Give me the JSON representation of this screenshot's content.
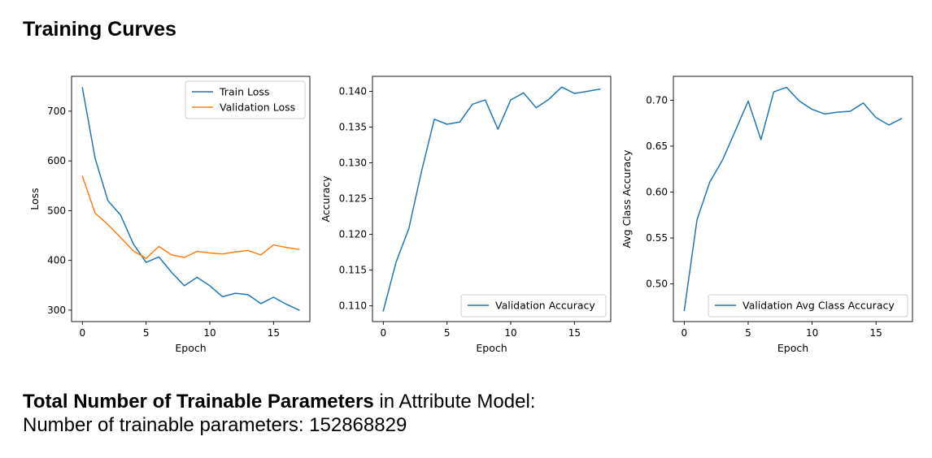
{
  "page": {
    "heading": "Training Curves",
    "params_bold": "Total Number of Trainable Parameters",
    "params_rest": " in Attribute Model:",
    "params_line2": "Number of trainable parameters: 152868829"
  },
  "chart_data": [
    {
      "type": "line",
      "xlabel": "Epoch",
      "ylabel": "Loss",
      "xlim": [
        -0.85,
        17.85
      ],
      "ylim": [
        277,
        770
      ],
      "xticks": [
        0,
        5,
        10,
        15
      ],
      "xtick_labels": [
        "0",
        "5",
        "10",
        "15"
      ],
      "yticks": [
        300,
        400,
        500,
        600,
        700
      ],
      "ytick_labels": [
        "300",
        "400",
        "500",
        "600",
        "700"
      ],
      "legend": "top-right",
      "grid": false,
      "x": [
        0,
        1,
        2,
        3,
        4,
        5,
        6,
        7,
        8,
        9,
        10,
        11,
        12,
        13,
        14,
        15,
        16,
        17
      ],
      "series": [
        {
          "name": "Train Loss",
          "color": "#1f77b4",
          "values": [
            747,
            605,
            520,
            491,
            433,
            396,
            407,
            376,
            349,
            366,
            349,
            327,
            334,
            331,
            313,
            326,
            312,
            300
          ]
        },
        {
          "name": "Validation Loss",
          "color": "#ff7f0e",
          "values": [
            569,
            495,
            472,
            446,
            419,
            404,
            428,
            411,
            406,
            418,
            415,
            413,
            417,
            420,
            411,
            431,
            426,
            422
          ]
        }
      ]
    },
    {
      "type": "line",
      "xlabel": "Epoch",
      "ylabel": "Accuracy",
      "xlim": [
        -0.85,
        17.85
      ],
      "ylim": [
        0.1078,
        0.1421
      ],
      "xticks": [
        0,
        5,
        10,
        15
      ],
      "xtick_labels": [
        "0",
        "5",
        "10",
        "15"
      ],
      "yticks": [
        0.11,
        0.115,
        0.12,
        0.125,
        0.13,
        0.135,
        0.14
      ],
      "ytick_labels": [
        "0.110",
        "0.115",
        "0.120",
        "0.125",
        "0.130",
        "0.135",
        "0.140"
      ],
      "legend": "bottom-right",
      "grid": false,
      "x": [
        0,
        1,
        2,
        3,
        4,
        5,
        6,
        7,
        8,
        9,
        10,
        11,
        12,
        13,
        14,
        15,
        16,
        17
      ],
      "series": [
        {
          "name": "Validation Accuracy",
          "color": "#1f77b4",
          "values": [
            0.1093,
            0.1161,
            0.1208,
            0.1288,
            0.1361,
            0.1354,
            0.1357,
            0.1382,
            0.1388,
            0.1347,
            0.1388,
            0.1398,
            0.1377,
            0.1389,
            0.1406,
            0.1397,
            0.14,
            0.1403
          ]
        }
      ]
    },
    {
      "type": "line",
      "xlabel": "Epoch",
      "ylabel": "Avg Class Accuracy",
      "xlim": [
        -0.85,
        17.85
      ],
      "ylim": [
        0.459,
        0.726
      ],
      "xticks": [
        0,
        5,
        10,
        15
      ],
      "xtick_labels": [
        "0",
        "5",
        "10",
        "15"
      ],
      "yticks": [
        0.5,
        0.55,
        0.6,
        0.65,
        0.7
      ],
      "ytick_labels": [
        "0.50",
        "0.55",
        "0.60",
        "0.65",
        "0.70"
      ],
      "legend": "bottom-right",
      "grid": false,
      "x": [
        0,
        1,
        2,
        3,
        4,
        5,
        6,
        7,
        8,
        9,
        10,
        11,
        12,
        13,
        14,
        15,
        16,
        17
      ],
      "series": [
        {
          "name": "Validation Avg Class Accuracy",
          "color": "#1f77b4",
          "values": [
            0.471,
            0.57,
            0.611,
            0.635,
            0.667,
            0.699,
            0.657,
            0.709,
            0.714,
            0.699,
            0.69,
            0.685,
            0.687,
            0.688,
            0.697,
            0.681,
            0.673,
            0.68
          ]
        }
      ]
    }
  ]
}
